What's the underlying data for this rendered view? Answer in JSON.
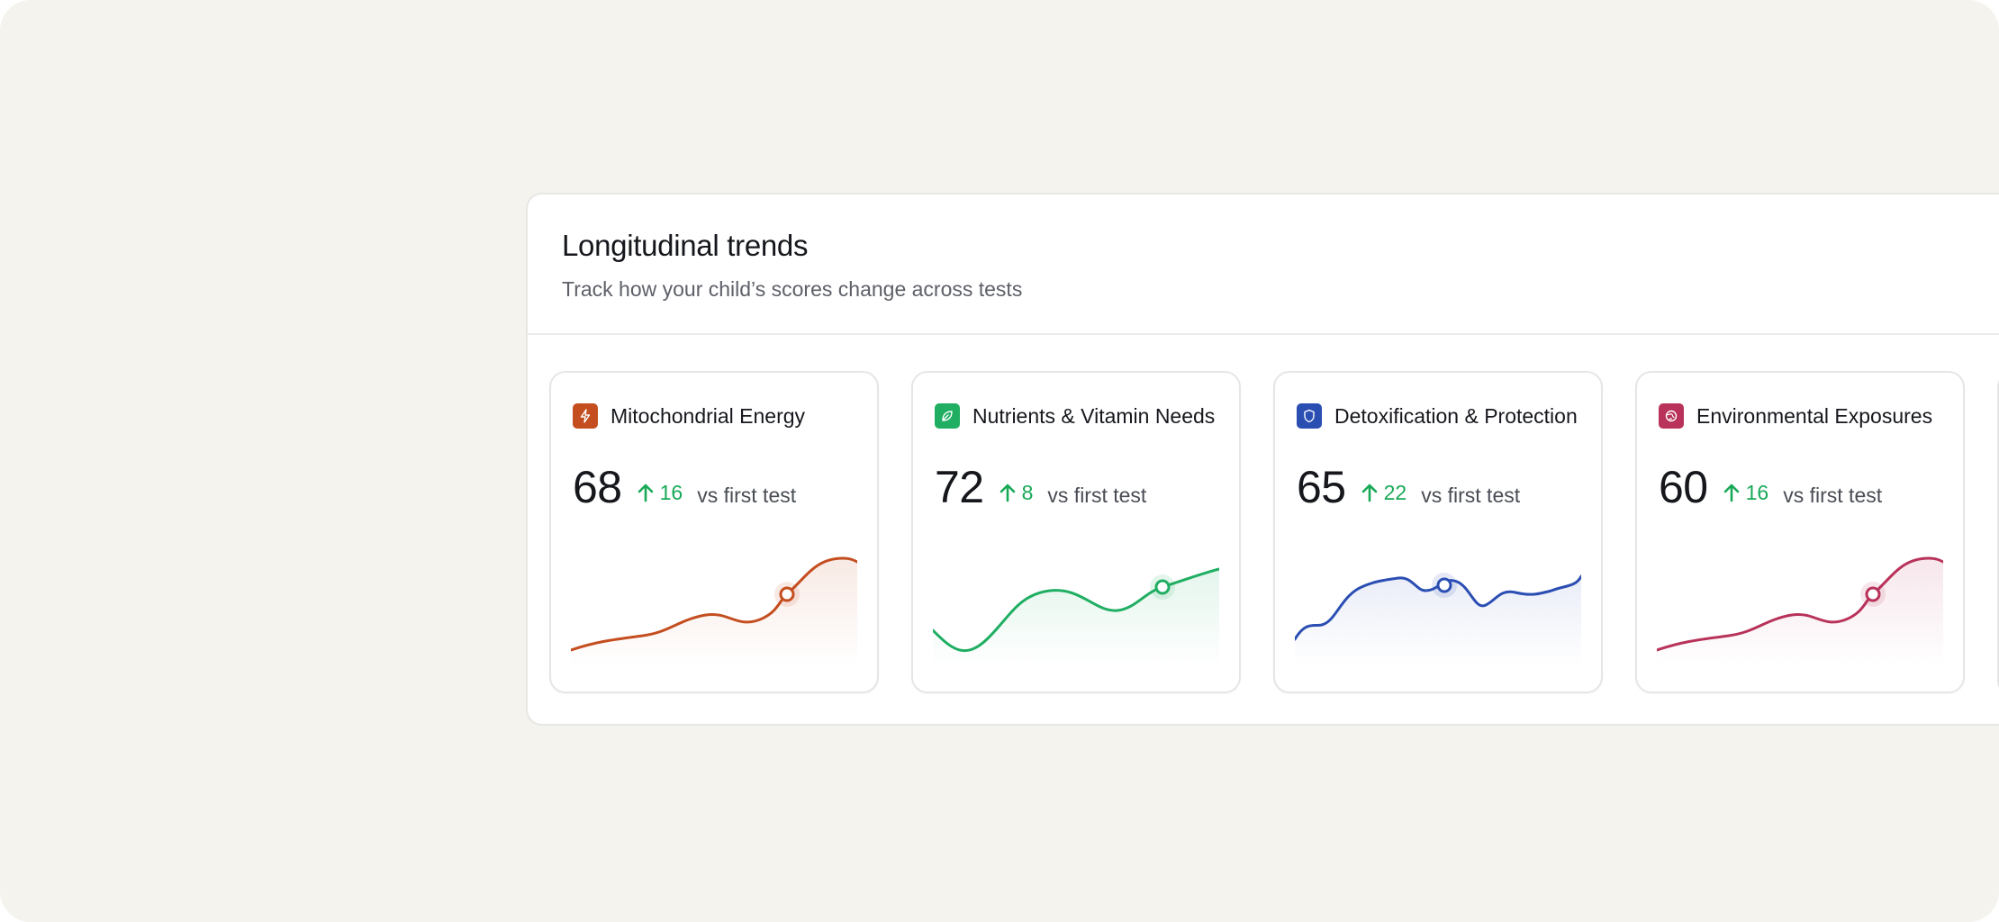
{
  "section": {
    "title": "Longitudinal trends",
    "subtitle": "Track how your child’s scores change across tests"
  },
  "cards": [
    {
      "label": "Mitochondrial Energy",
      "score": "68",
      "delta": "16",
      "comparison": "vs first test",
      "icon": "lightning-icon",
      "color": "#c44e1f"
    },
    {
      "label": "Nutrients & Vitamin Needs",
      "score": "72",
      "delta": "8",
      "comparison": "vs first test",
      "icon": "leaf-icon",
      "color": "#1fae62"
    },
    {
      "label": "Detoxification & Protection",
      "score": "65",
      "delta": "22",
      "comparison": "vs first test",
      "icon": "shield-icon",
      "color": "#2b4eb3"
    },
    {
      "label": "Environmental Exposures",
      "score": "60",
      "delta": "16",
      "comparison": "vs first test",
      "icon": "globe-icon",
      "color": "#b8325a"
    }
  ],
  "colors": {
    "background": "#f4f3ed",
    "positive": "#18a957"
  }
}
